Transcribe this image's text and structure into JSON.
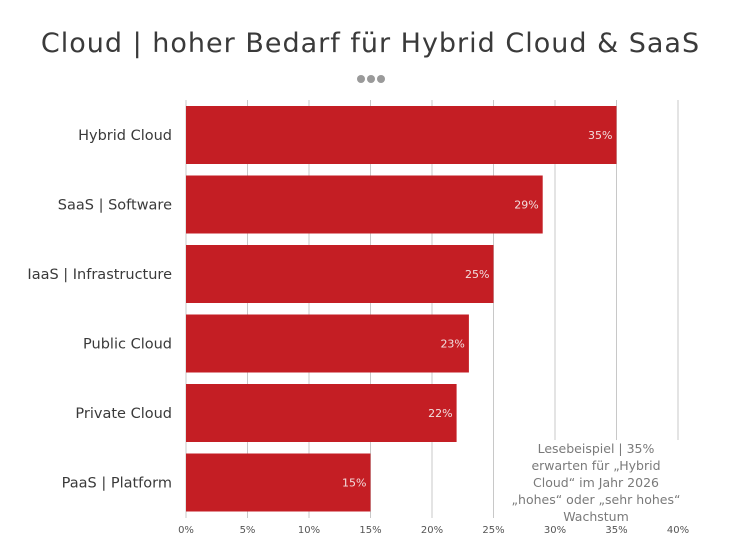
{
  "title": "Cloud | hoher Bedarf für Hybrid Cloud & SaaS",
  "menu_dots": [
    "•",
    "•",
    "•"
  ],
  "annotation": "Lesebeispiel | 35% erwarten für „Hybrid Cloud“ im Jahr 2026 „hohes“ oder „sehr hohes“ Wachstum",
  "colors": {
    "bar": "#c41e24",
    "grid": "#c8c8c8",
    "dots": "#9a9a9a",
    "bar_label": "#f2dede"
  },
  "chart_data": {
    "type": "bar",
    "orientation": "horizontal",
    "title": "Cloud | hoher Bedarf für Hybrid Cloud & SaaS",
    "categories": [
      "Hybrid Cloud",
      "SaaS | Software",
      "IaaS | Infrastructure",
      "Public Cloud",
      "Private Cloud",
      "PaaS | Platform"
    ],
    "values": [
      35,
      29,
      25,
      23,
      22,
      15
    ],
    "value_labels": [
      "35%",
      "29%",
      "25%",
      "23%",
      "22%",
      "15%"
    ],
    "xlim": [
      0,
      40
    ],
    "xticks": [
      0,
      5,
      10,
      15,
      20,
      25,
      30,
      35,
      40
    ],
    "xtick_labels": [
      "0%",
      "5%",
      "10%",
      "15%",
      "20%",
      "25%",
      "30%",
      "35%",
      "40%"
    ],
    "xlabel": "",
    "ylabel": "",
    "grid": "vertical",
    "legend": "none"
  }
}
